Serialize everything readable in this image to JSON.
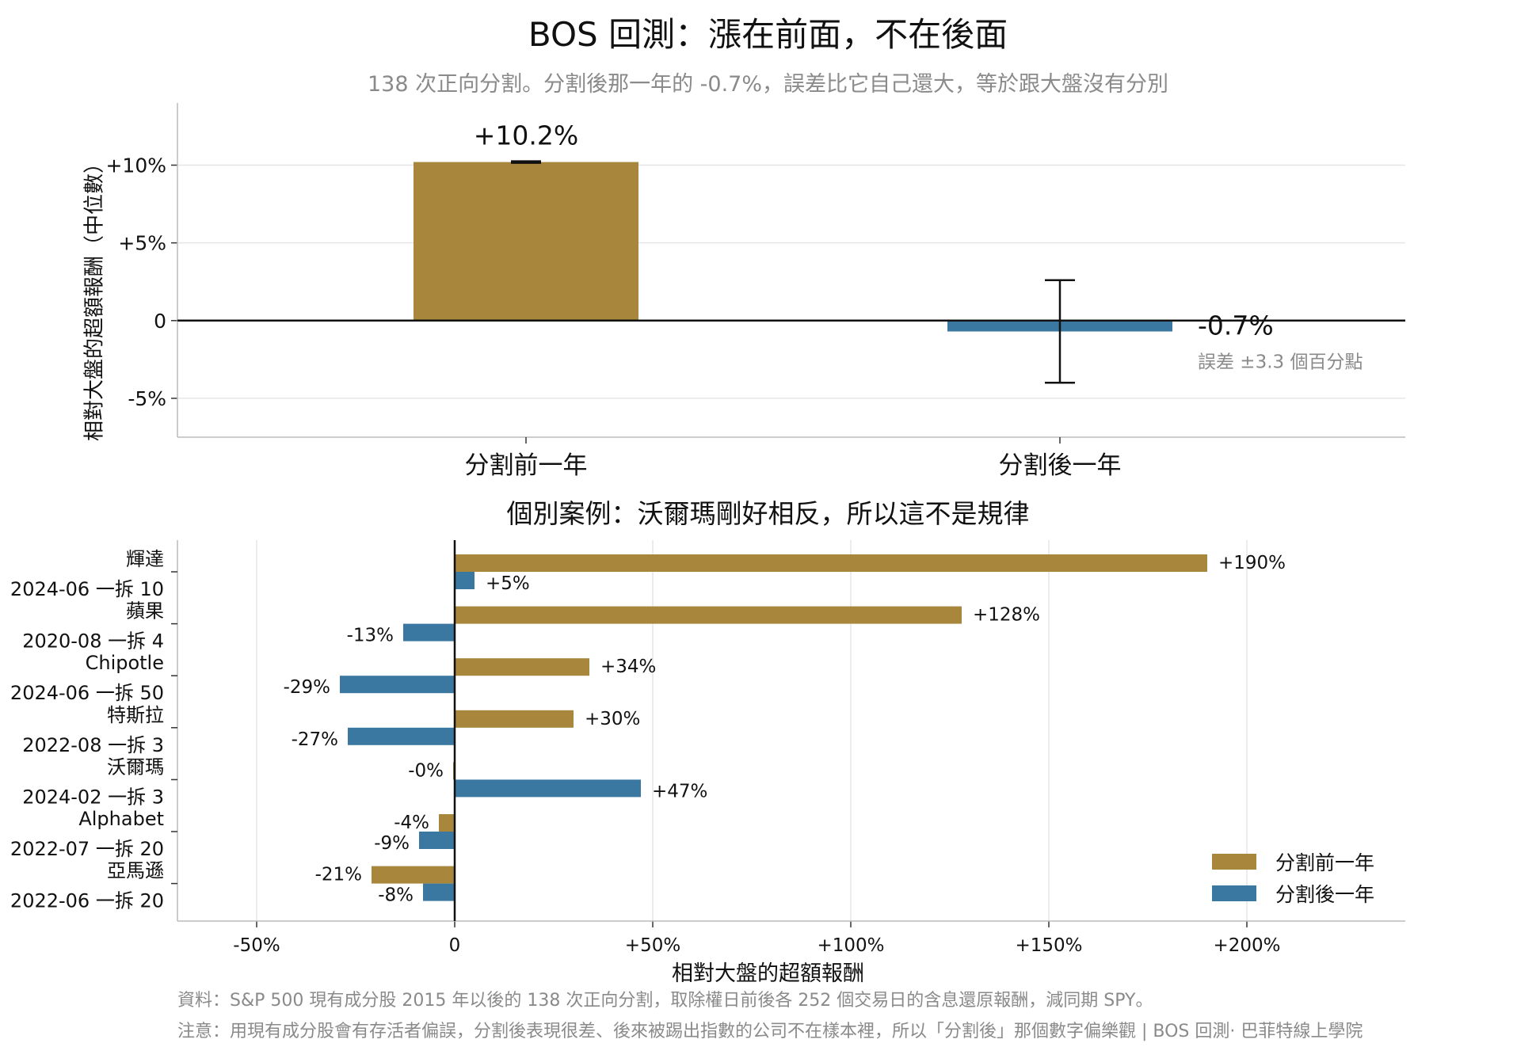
{
  "title": "BOS 回測：漲在前面，不在後面",
  "subtitle": "138 次正向分割。分割後那一年的 -0.7%，誤差比它自己還大，等於跟大盤沒有分別",
  "colors": {
    "before": "#a8873c",
    "after": "#3a78a2",
    "grid": "#e6e6e6",
    "axis": "#bbbbbb"
  },
  "top_chart": {
    "type": "bar",
    "ylabel": "相對大盤的超額報酬（中位數）",
    "ylim": [
      -7.5,
      14
    ],
    "yticks": [
      {
        "value": 10,
        "label": "+10%"
      },
      {
        "value": 5,
        "label": "+5%"
      },
      {
        "value": 0,
        "label": "0"
      },
      {
        "value": -5,
        "label": "-5%"
      }
    ],
    "categories": [
      "分割前一年",
      "分割後一年"
    ],
    "bars": [
      {
        "category": "分割前一年",
        "value": 10.2,
        "label": "+10.2%",
        "error": 0.05,
        "color_key": "before"
      },
      {
        "category": "分割後一年",
        "value": -0.7,
        "label": "-0.7%",
        "error": 3.3,
        "color_key": "after"
      }
    ],
    "error_note": "誤差 ±3.3 個百分點"
  },
  "chart_data": [
    {
      "type": "bar",
      "title": "BOS 回測：漲在前面，不在後面",
      "subtitle": "138 次正向分割。分割後那一年的 -0.7%，誤差比它自己還大，等於跟大盤沒有分別",
      "categories": [
        "分割前一年",
        "分割後一年"
      ],
      "values": [
        10.2,
        -0.7
      ],
      "errors": [
        0.05,
        3.3
      ],
      "ylabel": "相對大盤的超額報酬（中位數）",
      "ylim": [
        -7.5,
        14
      ],
      "grid": true
    },
    {
      "type": "bar",
      "orientation": "horizontal",
      "title": "個別案例：沃爾瑪剛好相反，所以這不是規律",
      "xlabel": "相對大盤的超額報酬",
      "xlim": [
        -70,
        240
      ],
      "categories": [
        "輝達 2024-06 一拆 10",
        "蘋果 2020-08 一拆 4",
        "Chipotle 2024-06 一拆 50",
        "特斯拉 2022-08 一拆 3",
        "沃爾瑪 2024-02 一拆 3",
        "Alphabet 2022-07 一拆 20",
        "亞馬遜 2022-06 一拆 20"
      ],
      "series": [
        {
          "name": "分割前一年",
          "values": [
            190,
            128,
            34,
            30,
            -0.4,
            -4,
            -21
          ]
        },
        {
          "name": "分割後一年",
          "values": [
            5,
            -13,
            -29,
            -27,
            47,
            -9,
            -8
          ]
        }
      ],
      "legend": "bottom-right",
      "grid": true
    }
  ],
  "bottom_chart": {
    "type": "barh",
    "title": "個別案例：沃爾瑪剛好相反，所以這不是規律",
    "xlabel": "相對大盤的超額報酬",
    "xlim": [
      -70,
      240
    ],
    "xticks": [
      {
        "value": -50,
        "label": "-50%"
      },
      {
        "value": 0,
        "label": "0"
      },
      {
        "value": 50,
        "label": "+50%"
      },
      {
        "value": 100,
        "label": "+100%"
      },
      {
        "value": 150,
        "label": "+150%"
      },
      {
        "value": 200,
        "label": "+200%"
      }
    ],
    "cases": [
      {
        "name": "輝達",
        "detail": "2024-06 一拆 10",
        "before": 190,
        "before_label": "+190%",
        "after": 5,
        "after_label": "+5%"
      },
      {
        "name": "蘋果",
        "detail": "2020-08 一拆 4",
        "before": 128,
        "before_label": "+128%",
        "after": -13,
        "after_label": "-13%"
      },
      {
        "name": "Chipotle",
        "detail": "2024-06 一拆 50",
        "before": 34,
        "before_label": "+34%",
        "after": -29,
        "after_label": "-29%"
      },
      {
        "name": "特斯拉",
        "detail": "2022-08 一拆 3",
        "before": 30,
        "before_label": "+30%",
        "after": -27,
        "after_label": "-27%"
      },
      {
        "name": "沃爾瑪",
        "detail": "2024-02 一拆 3",
        "before": -0.4,
        "before_label": "-0%",
        "after": 47,
        "after_label": "+47%"
      },
      {
        "name": "Alphabet",
        "detail": "2022-07 一拆 20",
        "before": -4,
        "before_label": "-4%",
        "after": -9,
        "after_label": "-9%"
      },
      {
        "name": "亞馬遜",
        "detail": "2022-06 一拆 20",
        "before": -21,
        "before_label": "-21%",
        "after": -8,
        "after_label": "-8%"
      }
    ],
    "legend": {
      "before": "分割前一年",
      "after": "分割後一年"
    }
  },
  "footer": {
    "source": "資料：S&P 500 現有成分股 2015 年以後的 138 次正向分割，取除權日前後各 252 個交易日的含息還原報酬，減同期 SPY。",
    "note": "注意：用現有成分股會有存活者偏誤，分割後表現很差、後來被踢出指數的公司不在樣本裡，所以「分割後」那個數字偏樂觀 | BOS 回測· 巴菲特線上學院"
  }
}
